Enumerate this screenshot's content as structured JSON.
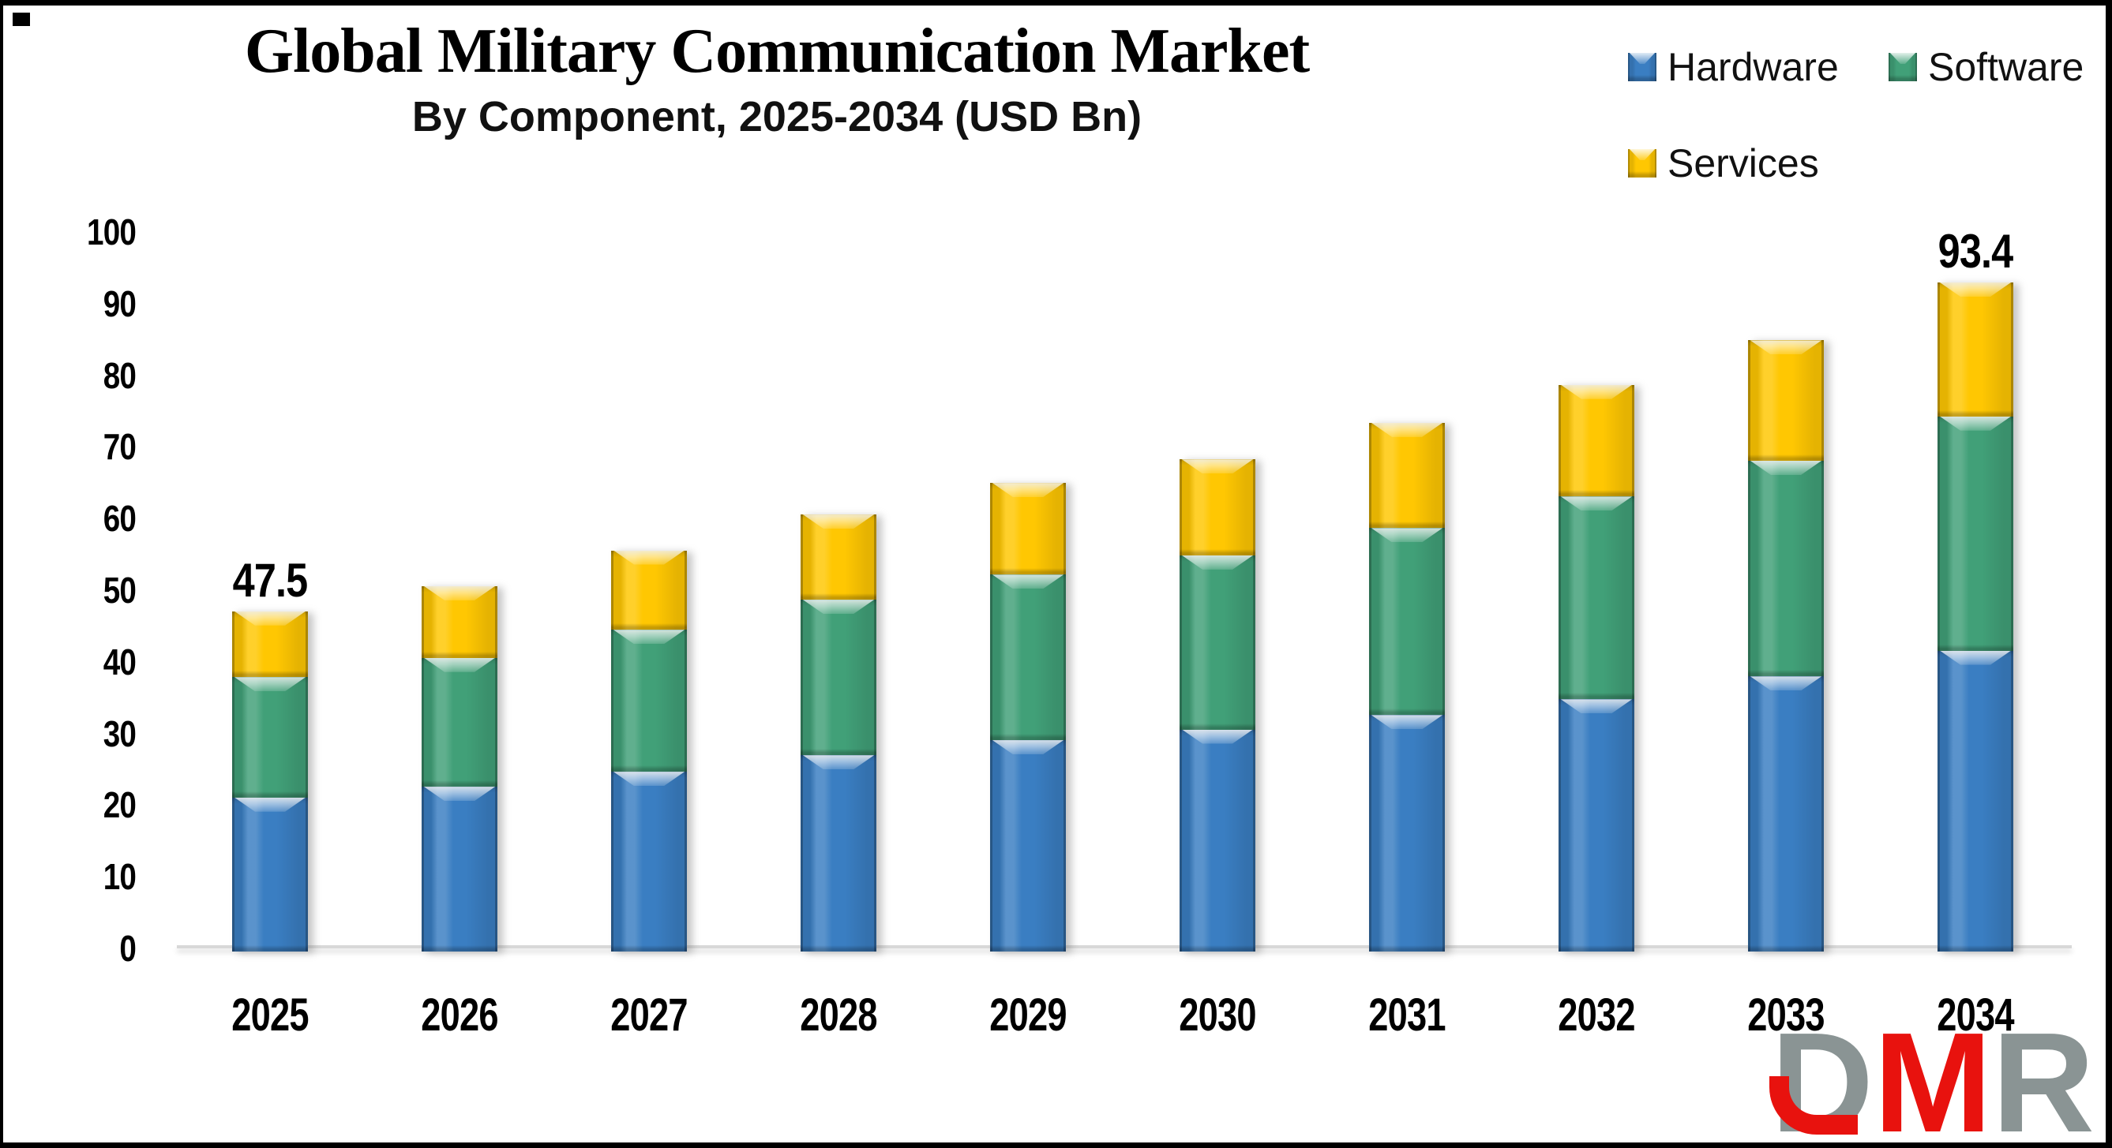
{
  "header": {
    "title": "Global Military Communication Market",
    "subtitle": "By Component, 2025-2034 (USD Bn)"
  },
  "legend": {
    "items": [
      {
        "label": "Hardware",
        "color": "#3A7EC2"
      },
      {
        "label": "Software",
        "color": "#41A078"
      },
      {
        "label": "Services",
        "color": "#FFC702"
      }
    ]
  },
  "chart_data": {
    "type": "bar",
    "stacked": true,
    "title": "Global Military Communication Market",
    "subtitle": "By Component, 2025-2034 (USD Bn)",
    "categories": [
      "2025",
      "2026",
      "2027",
      "2028",
      "2029",
      "2030",
      "2031",
      "2032",
      "2033",
      "2034"
    ],
    "series": [
      {
        "name": "Hardware",
        "color": "#3A7EC2",
        "values": [
          21.5,
          23.0,
          25.1,
          27.4,
          29.5,
          31.0,
          33.0,
          35.2,
          38.4,
          42.0
        ]
      },
      {
        "name": "Software",
        "color": "#41A078",
        "values": [
          16.8,
          18.0,
          19.8,
          21.7,
          23.1,
          24.3,
          26.1,
          28.3,
          30.1,
          32.7
        ]
      },
      {
        "name": "Services",
        "color": "#FFC702",
        "values": [
          9.2,
          10.0,
          11.1,
          11.9,
          12.8,
          13.4,
          14.7,
          15.6,
          16.8,
          18.7
        ]
      }
    ],
    "totals": [
      47.5,
      51.0,
      56.0,
      61.0,
      65.4,
      68.7,
      73.8,
      79.1,
      85.3,
      93.4
    ],
    "data_labels": [
      {
        "category": "2025",
        "text": "47.5"
      },
      {
        "category": "2034",
        "text": "93.4"
      }
    ],
    "xlabel": "",
    "ylabel": "",
    "ylim": [
      0,
      100
    ],
    "yticks": [
      0,
      10,
      20,
      30,
      40,
      50,
      60,
      70,
      80,
      90,
      100
    ],
    "grid": false,
    "legend_position": "top-right",
    "unit": "USD Bn"
  },
  "logo": {
    "letters": [
      {
        "text": "D",
        "color": "#8A9494"
      },
      {
        "text": "M",
        "color": "#E8120E"
      },
      {
        "text": "R",
        "color": "#8A9494"
      }
    ]
  }
}
